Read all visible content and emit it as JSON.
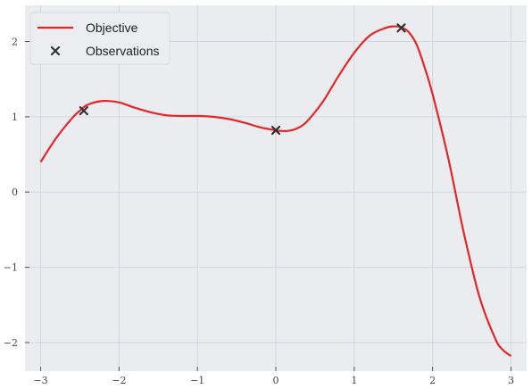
{
  "chart_data": {
    "type": "line",
    "title": "",
    "xlabel": "",
    "ylabel": "",
    "xlim": [
      -3.2,
      3.2
    ],
    "ylim": [
      -2.38,
      2.48
    ],
    "xticks": [
      -3,
      -2,
      -1,
      0,
      1,
      2,
      3
    ],
    "yticks": [
      -2,
      -1,
      0,
      1,
      2
    ],
    "xtick_labels": [
      "−3",
      "−2",
      "−1",
      "0",
      "1",
      "2",
      "3"
    ],
    "ytick_labels": [
      "−2",
      "−1",
      "0",
      "1",
      "2"
    ],
    "grid": true,
    "legend_position": "top-left",
    "colors": {
      "background": "#eaecef",
      "grid": "#d2d8df",
      "objective": "#e3262a",
      "observations": "#333333"
    },
    "series": [
      {
        "name": "Objective",
        "kind": "line",
        "x": [
          -3.0,
          -2.8,
          -2.6,
          -2.5,
          -2.4,
          -2.2,
          -2.0,
          -1.8,
          -1.6,
          -1.4,
          -1.2,
          -1.0,
          -0.8,
          -0.6,
          -0.4,
          -0.2,
          0.0,
          0.1,
          0.2,
          0.3,
          0.4,
          0.6,
          0.8,
          1.0,
          1.2,
          1.4,
          1.5,
          1.6,
          1.7,
          1.8,
          1.9,
          2.0,
          2.2,
          2.4,
          2.6,
          2.8,
          2.9,
          3.0
        ],
        "y": [
          0.4,
          0.72,
          0.98,
          1.08,
          1.16,
          1.21,
          1.19,
          1.12,
          1.06,
          1.02,
          1.01,
          1.01,
          1.0,
          0.97,
          0.92,
          0.86,
          0.82,
          0.81,
          0.82,
          0.86,
          0.94,
          1.2,
          1.54,
          1.85,
          2.08,
          2.18,
          2.2,
          2.19,
          2.12,
          1.95,
          1.65,
          1.3,
          0.45,
          -0.55,
          -1.4,
          -1.95,
          -2.1,
          -2.18
        ]
      },
      {
        "name": "Observations",
        "kind": "scatter",
        "marker": "x",
        "x": [
          -2.45,
          0.0,
          1.6
        ],
        "y": [
          1.08,
          0.82,
          2.18
        ]
      }
    ],
    "legend": [
      "Objective",
      "Observations"
    ]
  }
}
